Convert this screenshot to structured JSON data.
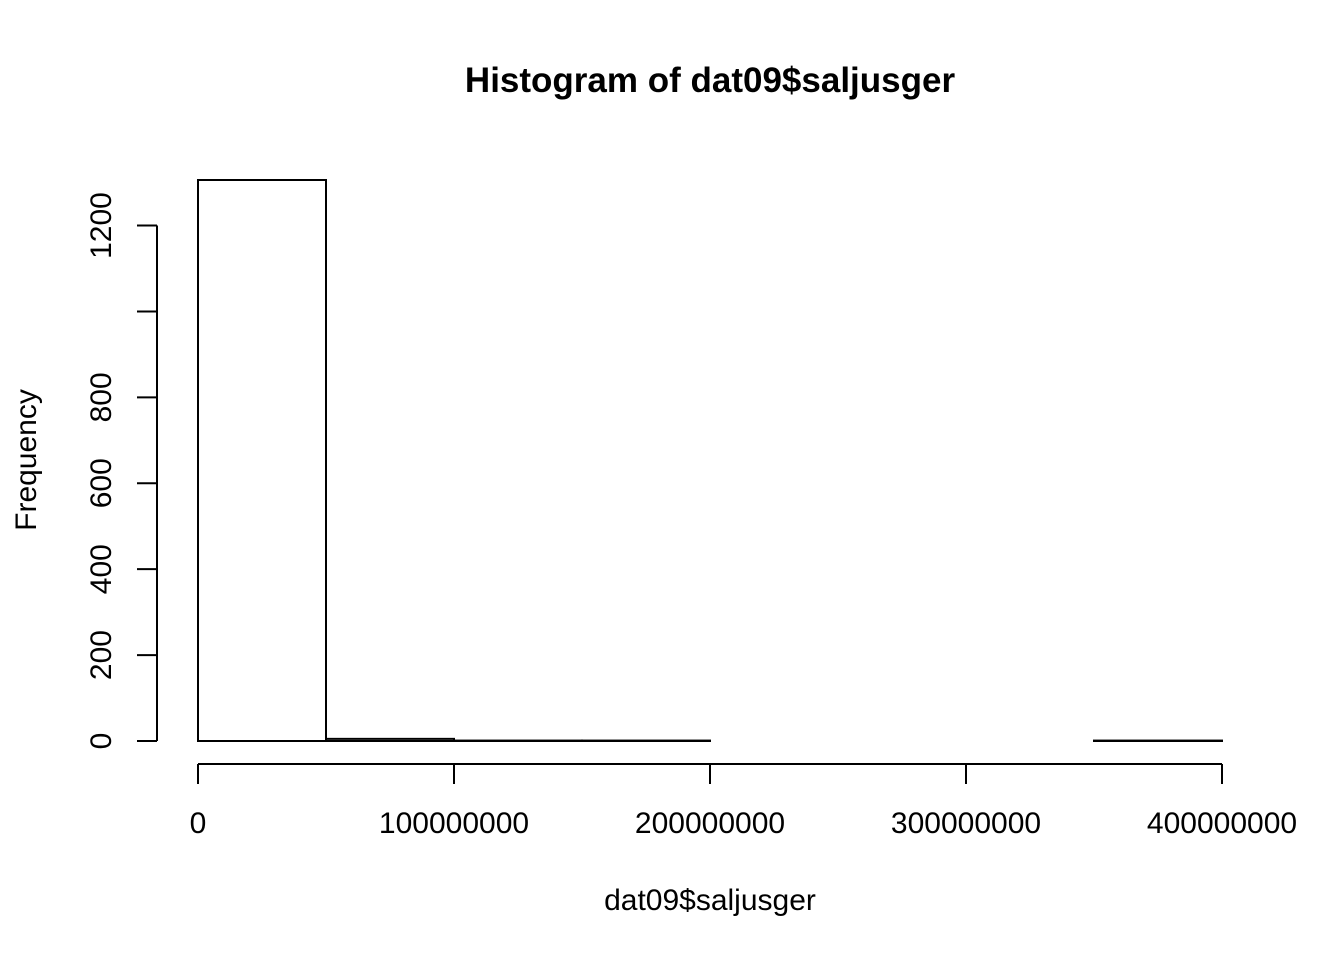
{
  "chart_data": {
    "type": "bar",
    "subtype": "histogram",
    "title": "Histogram of dat09$saljusger",
    "xlabel": "dat09$saljusger",
    "ylabel": "Frequency",
    "bins": [
      {
        "from": 0,
        "to": 50000000,
        "count": 1306
      },
      {
        "from": 50000000,
        "to": 100000000,
        "count": 5
      },
      {
        "from": 100000000,
        "to": 150000000,
        "count": 1
      },
      {
        "from": 150000000,
        "to": 200000000,
        "count": 1
      },
      {
        "from": 200000000,
        "to": 250000000,
        "count": 0
      },
      {
        "from": 250000000,
        "to": 300000000,
        "count": 0
      },
      {
        "from": 300000000,
        "to": 350000000,
        "count": 0
      },
      {
        "from": 350000000,
        "to": 400000000,
        "count": 1
      }
    ],
    "xlim": [
      0,
      400000000
    ],
    "ylim": [
      0,
      1306
    ],
    "x_ticks": [
      0,
      100000000,
      200000000,
      300000000,
      400000000
    ],
    "x_tick_labels": [
      "0",
      "100000000",
      "200000000",
      "300000000",
      "400000000"
    ],
    "y_ticks": [
      0,
      200,
      400,
      600,
      800,
      1000,
      1200
    ],
    "y_tick_labels": [
      "0",
      "200",
      "400",
      "600",
      "800",
      "",
      "1200"
    ],
    "grid": false,
    "legend": "none",
    "bar_fill": "#ffffff",
    "bar_stroke": "#000000"
  }
}
